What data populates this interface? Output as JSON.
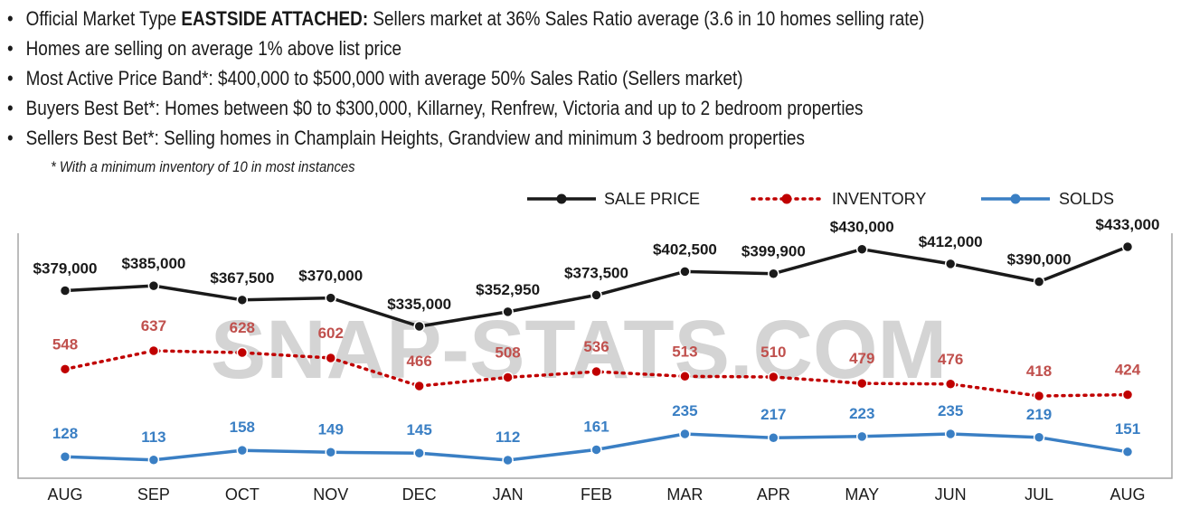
{
  "bullets": [
    {
      "prefix": "Official Market Type ",
      "bold": "EASTSIDE ATTACHED:",
      "rest": " Sellers market at 36% Sales Ratio average (3.6 in 10 homes selling rate)"
    },
    {
      "prefix": "Homes are selling on average 1% above list price",
      "bold": "",
      "rest": ""
    },
    {
      "prefix": "Most Active Price Band*: $400,000 to $500,000 with average 50% Sales Ratio (Sellers market)",
      "bold": "",
      "rest": ""
    },
    {
      "prefix": "Buyers Best Bet*: Homes between $0 to $300,000, Killarney, Renfrew, Victoria and up to 2 bedroom properties",
      "bold": "",
      "rest": ""
    },
    {
      "prefix": "Sellers Best Bet*: Selling homes in Champlain Heights, Grandview and minimum 3 bedroom properties",
      "bold": "",
      "rest": ""
    }
  ],
  "bullet_glyph": "•",
  "footnote": "* With a minimum inventory of 10 in most instances",
  "watermark": "SNAP-STATS.COM",
  "chart_data": {
    "type": "line",
    "categories": [
      "AUG",
      "SEP",
      "OCT",
      "NOV",
      "DEC",
      "JAN",
      "FEB",
      "MAR",
      "APR",
      "MAY",
      "JUN",
      "JUL",
      "AUG"
    ],
    "legend_position": "top-right",
    "grid": false,
    "series": [
      {
        "name": "SALE PRICE",
        "color": "#1a1a1a",
        "style": "solid",
        "values": [
          379000,
          385000,
          367500,
          370000,
          335000,
          352950,
          373500,
          402500,
          399900,
          430000,
          412000,
          390000,
          433000
        ],
        "labels": [
          "$379,000",
          "$385,000",
          "$367,500",
          "$370,000",
          "$335,000",
          "$352,950",
          "$373,500",
          "$402,500",
          "$399,900",
          "$430,000",
          "$412,000",
          "$390,000",
          "$433,000"
        ]
      },
      {
        "name": "INVENTORY",
        "color": "#c00000",
        "label_color": "#c0504d",
        "style": "dotted",
        "values": [
          548,
          637,
          628,
          602,
          466,
          508,
          536,
          513,
          510,
          479,
          476,
          418,
          424
        ],
        "labels": [
          "548",
          "637",
          "628",
          "602",
          "466",
          "508",
          "536",
          "513",
          "510",
          "479",
          "476",
          "418",
          "424"
        ]
      },
      {
        "name": "SOLDS",
        "color": "#3a7fc4",
        "label_color": "#3a7fc4",
        "style": "solid",
        "values": [
          128,
          113,
          158,
          149,
          145,
          112,
          161,
          235,
          217,
          223,
          235,
          219,
          151
        ],
        "labels": [
          "128",
          "113",
          "158",
          "149",
          "145",
          "112",
          "161",
          "235",
          "217",
          "223",
          "235",
          "219",
          "151"
        ]
      }
    ]
  }
}
